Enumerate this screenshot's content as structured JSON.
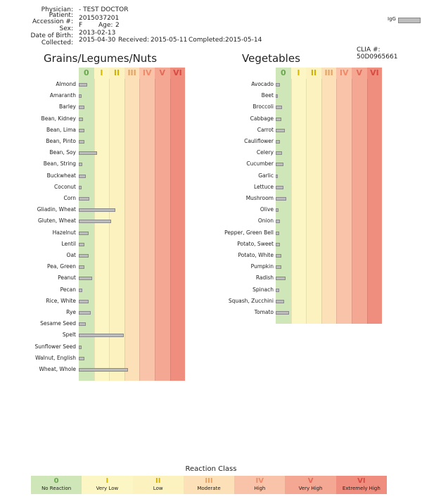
{
  "header": {
    "physician_label": "Physician:",
    "physician": "- TEST DOCTOR",
    "patient_label": "Patient:",
    "accession_label": "Accession #:",
    "accession": "2015037201",
    "sex_label": "Sex:",
    "sex": "F",
    "age_label": "Age:",
    "age": "2",
    "dob_label": "Date of Birth:",
    "dob": "2013-02-13",
    "collected_label": "Collected:",
    "collected": "2015-04-30",
    "received_label": "Received:",
    "received": "2015-05-11",
    "completed_label": "Completed:",
    "completed": "2015-05-14",
    "igg_label": "IgG",
    "clia_label": "CLIA #: 50D0965661"
  },
  "classes": [
    "0",
    "I",
    "II",
    "III",
    "IV",
    "V",
    "VI"
  ],
  "class_colors": [
    "#cfe6b8",
    "#fcf6c4",
    "#fcf2bf",
    "#fbe0b8",
    "#f8c3a8",
    "#f4a894",
    "#ef8e7e"
  ],
  "class_text_colors": [
    "#6aa84f",
    "#d6b800",
    "#d2b000",
    "#e6a060",
    "#ee8a6a",
    "#e36a58",
    "#d94a40"
  ],
  "chart_data": [
    {
      "type": "bar",
      "title": "Grains/Legumes/Nuts",
      "categories": [
        "Almond",
        "Amaranth",
        "Barley",
        "Bean, Kidney",
        "Bean, Lima",
        "Bean, Pinto",
        "Bean, Soy",
        "Bean, String",
        "Buckwheat",
        "Coconut",
        "Corn",
        "Gliadin, Wheat",
        "Gluten, Wheat",
        "Hazelnut",
        "Lentil",
        "Oat",
        "Pea, Green",
        "Peanut",
        "Pecan",
        "Rice, White",
        "Rye",
        "Sesame Seed",
        "Spelt",
        "Sunflower Seed",
        "Walnut, English",
        "Wheat, Whole"
      ],
      "values": [
        0.55,
        0.2,
        0.35,
        0.3,
        0.35,
        0.35,
        1.2,
        0.25,
        0.45,
        0.2,
        0.7,
        2.4,
        2.15,
        0.65,
        0.35,
        0.65,
        0.35,
        0.9,
        0.25,
        0.65,
        0.8,
        0.45,
        2.95,
        0.2,
        0.35,
        3.25
      ],
      "xlim": [
        0,
        7
      ]
    },
    {
      "type": "bar",
      "title": "Vegetables",
      "categories": [
        "Avocado",
        "Beet",
        "Broccoli",
        "Cabbage",
        "Carrot",
        "Cauliflower",
        "Celery",
        "Cucumber",
        "Garlic",
        "Lettuce",
        "Mushroom",
        "Olive",
        "Onion",
        "Pepper, Green Bell",
        "Potato, Sweet",
        "Potato, White",
        "Pumpkin",
        "Radish",
        "Spinach",
        "Squash, Zucchini",
        "Tomato"
      ],
      "values": [
        0.3,
        0.15,
        0.4,
        0.35,
        0.6,
        0.3,
        0.4,
        0.5,
        0.15,
        0.5,
        0.7,
        0.2,
        0.3,
        0.25,
        0.3,
        0.35,
        0.35,
        0.65,
        0.25,
        0.55,
        0.9
      ],
      "xlim": [
        0,
        7
      ]
    }
  ],
  "legend": {
    "title": "Reaction Class",
    "items": [
      {
        "num": "0",
        "text": "No Reaction"
      },
      {
        "num": "I",
        "text": "Very Low"
      },
      {
        "num": "II",
        "text": "Low"
      },
      {
        "num": "III",
        "text": "Moderate"
      },
      {
        "num": "IV",
        "text": "High"
      },
      {
        "num": "V",
        "text": "Very High"
      },
      {
        "num": "VI",
        "text": "Extremely High"
      }
    ]
  }
}
